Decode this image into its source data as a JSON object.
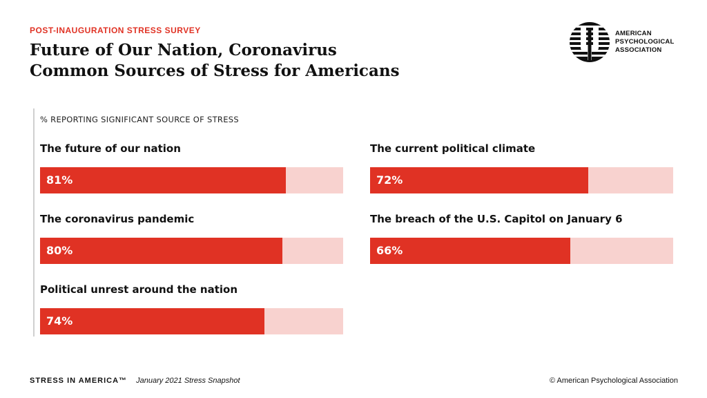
{
  "header": {
    "eyebrow": "POST-INAUGURATION STRESS SURVEY",
    "title_line1": "Future of Our Nation, Coronavirus",
    "title_line2": "Common Sources of Stress for Americans"
  },
  "logo": {
    "icon": "apa-psi-logo-icon",
    "line1": "AMERICAN",
    "line2": "PSYCHOLOGICAL",
    "line3": "ASSOCIATION"
  },
  "colors": {
    "accent": "#e03224",
    "track": "#f8d2cf"
  },
  "chart_data": {
    "type": "bar",
    "subtitle": "% REPORTING SIGNIFICANT SOURCE OF STRESS",
    "ylim": [
      0,
      100
    ],
    "unit": "%",
    "items": [
      {
        "label": "The future of our nation",
        "value": 81,
        "display": "81%"
      },
      {
        "label": "The coronavirus pandemic",
        "value": 80,
        "display": "80%"
      },
      {
        "label": "Political unrest around the nation",
        "value": 74,
        "display": "74%"
      },
      {
        "label": "The current political climate",
        "value": 72,
        "display": "72%"
      },
      {
        "label": "The breach of the U.S. Capitol on January 6",
        "value": 66,
        "display": "66%"
      }
    ]
  },
  "footer": {
    "brand": "STRESS IN AMERICA™",
    "subtitle": "January 2021 Stress Snapshot",
    "copyright": "© American Psychological Association"
  }
}
